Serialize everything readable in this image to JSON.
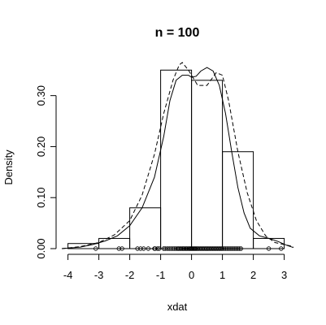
{
  "chart_data": {
    "type": "histogram",
    "title": "n = 100",
    "xlabel": "xdat",
    "ylabel": "Density",
    "xlim": [
      -4.2,
      3.3
    ],
    "ylim": [
      0,
      0.36
    ],
    "grid": false,
    "legend": "none",
    "x_ticks": [
      {
        "value": -4,
        "label": "-4"
      },
      {
        "value": -3,
        "label": "-3"
      },
      {
        "value": -2,
        "label": "-2"
      },
      {
        "value": -1,
        "label": "-1"
      },
      {
        "value": 0,
        "label": "0"
      },
      {
        "value": 1,
        "label": "1"
      },
      {
        "value": 2,
        "label": "2"
      },
      {
        "value": 3,
        "label": "3"
      }
    ],
    "y_ticks": [
      {
        "value": 0.0,
        "label": "0.00"
      },
      {
        "value": 0.1,
        "label": "0.10"
      },
      {
        "value": 0.2,
        "label": "0.20"
      },
      {
        "value": 0.3,
        "label": "0.30"
      }
    ],
    "bins": [
      {
        "x0": -4,
        "x1": -3,
        "density": 0.01
      },
      {
        "x0": -3,
        "x1": -2,
        "density": 0.02
      },
      {
        "x0": -2,
        "x1": -1,
        "density": 0.08
      },
      {
        "x0": -1,
        "x1": 0,
        "density": 0.35
      },
      {
        "x0": 0,
        "x1": 1,
        "density": 0.33
      },
      {
        "x0": 1,
        "x1": 2,
        "density": 0.19
      },
      {
        "x0": 2,
        "x1": 3,
        "density": 0.02
      }
    ],
    "series": [
      {
        "style": "solid",
        "points": [
          [
            -4.2,
            0.0
          ],
          [
            -3.6,
            0.003
          ],
          [
            -3.2,
            0.008
          ],
          [
            -2.8,
            0.015
          ],
          [
            -2.4,
            0.025
          ],
          [
            -2.0,
            0.045
          ],
          [
            -1.6,
            0.08
          ],
          [
            -1.2,
            0.14
          ],
          [
            -0.9,
            0.22
          ],
          [
            -0.7,
            0.29
          ],
          [
            -0.5,
            0.33
          ],
          [
            -0.3,
            0.34
          ],
          [
            -0.1,
            0.34
          ],
          [
            0.0,
            0.336
          ],
          [
            0.15,
            0.338
          ],
          [
            0.3,
            0.348
          ],
          [
            0.5,
            0.355
          ],
          [
            0.7,
            0.348
          ],
          [
            0.9,
            0.32
          ],
          [
            1.1,
            0.265
          ],
          [
            1.3,
            0.19
          ],
          [
            1.5,
            0.12
          ],
          [
            1.7,
            0.07
          ],
          [
            1.9,
            0.04
          ],
          [
            2.2,
            0.025
          ],
          [
            2.5,
            0.02
          ],
          [
            2.8,
            0.014
          ],
          [
            3.1,
            0.006
          ],
          [
            3.3,
            0.002
          ]
        ]
      },
      {
        "style": "dashed",
        "points": [
          [
            -4.2,
            0.0
          ],
          [
            -3.6,
            0.004
          ],
          [
            -3.0,
            0.012
          ],
          [
            -2.5,
            0.027
          ],
          [
            -2.0,
            0.055
          ],
          [
            -1.6,
            0.105
          ],
          [
            -1.2,
            0.185
          ],
          [
            -0.9,
            0.265
          ],
          [
            -0.6,
            0.33
          ],
          [
            -0.4,
            0.36
          ],
          [
            -0.3,
            0.365
          ],
          [
            -0.1,
            0.35
          ],
          [
            0.2,
            0.32
          ],
          [
            0.5,
            0.32
          ],
          [
            0.8,
            0.345
          ],
          [
            1.0,
            0.34
          ],
          [
            1.2,
            0.29
          ],
          [
            1.5,
            0.19
          ],
          [
            1.8,
            0.11
          ],
          [
            2.1,
            0.055
          ],
          [
            2.4,
            0.025
          ],
          [
            2.7,
            0.012
          ],
          [
            3.0,
            0.008
          ],
          [
            3.3,
            0.004
          ]
        ]
      }
    ],
    "rug": [
      -3.1,
      -2.35,
      -2.25,
      -1.75,
      -1.65,
      -1.55,
      -1.4,
      -1.2,
      -1.18,
      -1.1,
      -1.05,
      -0.9,
      -0.85,
      -0.78,
      -0.72,
      -0.66,
      -0.6,
      -0.55,
      -0.5,
      -0.45,
      -0.42,
      -0.38,
      -0.34,
      -0.3,
      -0.27,
      -0.24,
      -0.2,
      -0.17,
      -0.14,
      -0.1,
      -0.07,
      -0.04,
      -0.01,
      0.02,
      0.05,
      0.08,
      0.11,
      0.14,
      0.17,
      0.2,
      0.24,
      0.28,
      0.32,
      0.36,
      0.4,
      0.44,
      0.48,
      0.52,
      0.56,
      0.6,
      0.64,
      0.68,
      0.72,
      0.76,
      0.8,
      0.84,
      0.88,
      0.92,
      0.96,
      1.0,
      1.05,
      1.1,
      1.15,
      1.2,
      1.25,
      1.3,
      1.35,
      1.4,
      1.45,
      1.5,
      1.55,
      1.6,
      2.5,
      2.9
    ]
  }
}
